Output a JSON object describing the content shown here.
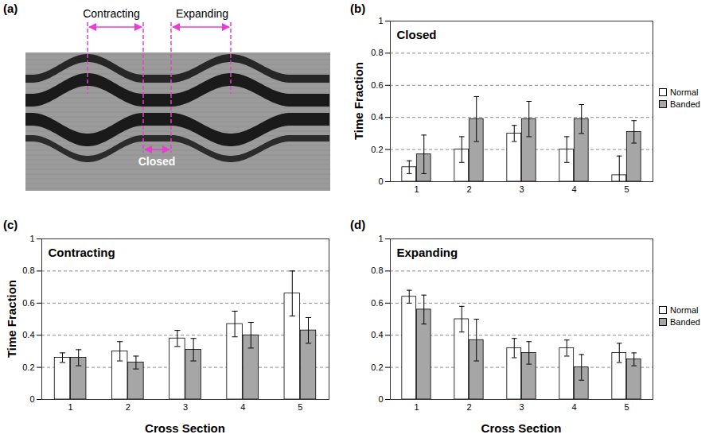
{
  "chart_data": [
    {
      "type": "image",
      "label": "(a)",
      "annotations": [
        "Contracting",
        "Expanding",
        "Closed"
      ]
    },
    {
      "type": "bar",
      "label": "(b)",
      "title": "Closed",
      "ylabel": "Time Fraction",
      "categories": [
        "1",
        "2",
        "3",
        "4",
        "5"
      ],
      "series": [
        {
          "name": "Normal",
          "color": "#ffffff",
          "values": [
            0.09,
            0.2,
            0.3,
            0.2,
            0.04
          ],
          "errors": [
            0.04,
            0.08,
            0.05,
            0.08,
            0.12
          ]
        },
        {
          "name": "Banded",
          "color": "#a6a6a6",
          "values": [
            0.17,
            0.39,
            0.39,
            0.39,
            0.31
          ],
          "errors": [
            0.12,
            0.14,
            0.11,
            0.09,
            0.07
          ]
        }
      ],
      "ylim": [
        0,
        1
      ],
      "yticks": [
        0,
        0.2,
        0.4,
        0.6,
        0.8,
        1
      ],
      "grid": true,
      "legend": "right"
    },
    {
      "type": "bar",
      "label": "(c)",
      "title": "Contracting",
      "ylabel": "Time Fraction",
      "xlabel": "Cross Section",
      "categories": [
        "1",
        "2",
        "3",
        "4",
        "5"
      ],
      "series": [
        {
          "name": "Normal",
          "color": "#ffffff",
          "values": [
            0.26,
            0.3,
            0.38,
            0.47,
            0.66
          ],
          "errors": [
            0.03,
            0.06,
            0.05,
            0.08,
            0.14
          ]
        },
        {
          "name": "Banded",
          "color": "#a6a6a6",
          "values": [
            0.26,
            0.23,
            0.31,
            0.4,
            0.43
          ],
          "errors": [
            0.05,
            0.04,
            0.07,
            0.08,
            0.08
          ]
        }
      ],
      "ylim": [
        0,
        1
      ],
      "yticks": [
        0,
        0.2,
        0.4,
        0.6,
        0.8,
        1
      ],
      "grid": true
    },
    {
      "type": "bar",
      "label": "(d)",
      "title": "Expanding",
      "xlabel": "Cross Section",
      "categories": [
        "1",
        "2",
        "3",
        "4",
        "5"
      ],
      "series": [
        {
          "name": "Normal",
          "color": "#ffffff",
          "values": [
            0.64,
            0.5,
            0.32,
            0.32,
            0.29
          ],
          "errors": [
            0.04,
            0.08,
            0.06,
            0.05,
            0.06
          ]
        },
        {
          "name": "Banded",
          "color": "#a6a6a6",
          "values": [
            0.56,
            0.37,
            0.29,
            0.2,
            0.25
          ],
          "errors": [
            0.09,
            0.13,
            0.07,
            0.08,
            0.04
          ]
        }
      ],
      "ylim": [
        0,
        1
      ],
      "yticks": [
        0,
        0.2,
        0.4,
        0.6,
        0.8,
        1
      ],
      "grid": true,
      "legend": "right"
    }
  ]
}
